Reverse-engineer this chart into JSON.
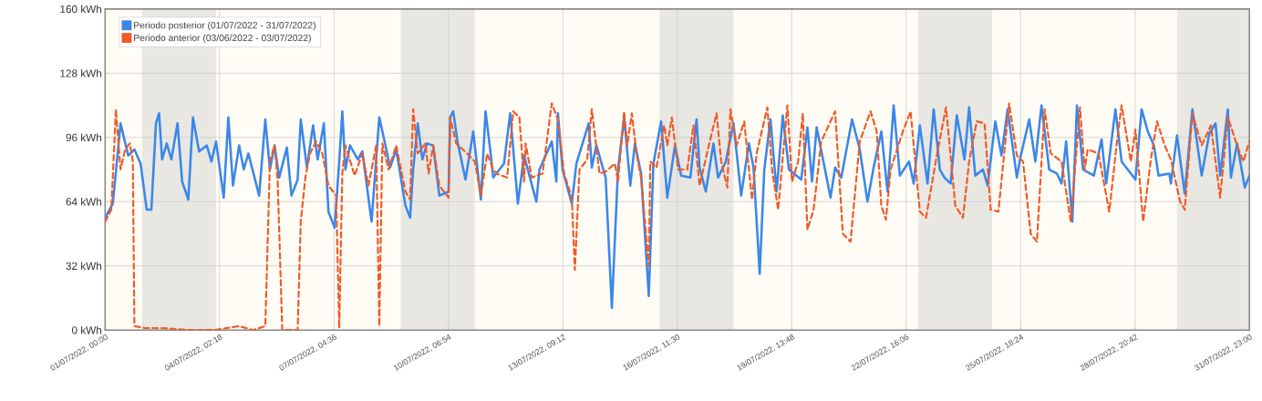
{
  "chart_data": {
    "type": "line",
    "xlim": [
      "2022-07-01T00:00",
      "2022-07-31T23:00"
    ],
    "ylim": [
      0,
      160
    ],
    "xticks": [
      {
        "value": "2022-07-01T00:00",
        "label": "01/07/2022, 00:00"
      },
      {
        "value": "2022-07-04T02:18",
        "label": "04/07/2022, 02:18"
      },
      {
        "value": "2022-07-07T04:36",
        "label": "07/07/2022, 04:36"
      },
      {
        "value": "2022-07-10T06:54",
        "label": "10/07/2022, 06:54"
      },
      {
        "value": "2022-07-13T09:12",
        "label": "13/07/2022, 09:12"
      },
      {
        "value": "2022-07-16T11:30",
        "label": "16/07/2022, 11:30"
      },
      {
        "value": "2022-07-19T13:48",
        "label": "19/07/2022, 13:48"
      },
      {
        "value": "2022-07-22T16:06",
        "label": "22/07/2022, 16:06"
      },
      {
        "value": "2022-07-25T18:24",
        "label": "25/07/2022, 18:24"
      },
      {
        "value": "2022-07-28T20:42",
        "label": "28/07/2022, 20:42"
      },
      {
        "value": "2022-07-31T23:00",
        "label": "31/07/2022, 23:00"
      }
    ],
    "yticks": [
      {
        "value": 0,
        "label": "0 kWh"
      },
      {
        "value": 32,
        "label": "32 kWh"
      },
      {
        "value": 64,
        "label": "64 kWh"
      },
      {
        "value": 96,
        "label": "96 kWh"
      },
      {
        "value": 128,
        "label": "128 kWh"
      },
      {
        "value": 160,
        "label": "160 kWh"
      }
    ],
    "grid": true,
    "legend": "top left",
    "marker": "none",
    "bands": [
      {
        "axis": "x",
        "from": "2022-07-02T00:00",
        "to": "2022-07-04T00:00",
        "color": "#e8e7e2"
      },
      {
        "axis": "x",
        "from": "2022-07-09T00:00",
        "to": "2022-07-11T00:00",
        "color": "#e8e7e2"
      },
      {
        "axis": "x",
        "from": "2022-07-16T00:00",
        "to": "2022-07-18T00:00",
        "color": "#e8e7e2"
      },
      {
        "axis": "x",
        "from": "2022-07-23T00:00",
        "to": "2022-07-25T00:00",
        "color": "#e8e7e2"
      },
      {
        "axis": "x",
        "from": "2022-07-30T00:00",
        "to": "2022-07-31T23:00",
        "color": "#e8e7e2"
      }
    ],
    "series": [
      {
        "name": "Periodo posterior (01/07/2022 - 31/07/2022)",
        "color": "#3b87e8",
        "line_style": "solid",
        "x": [
          "2022-07-01T00:00",
          "2022-07-01T05:00",
          "2022-07-01T08:00",
          "2022-07-01T10:00",
          "2022-07-01T15:00",
          "2022-07-01T19:00",
          "2022-07-01T23:00",
          "2022-07-02T03:00",
          "2022-07-02T06:00",
          "2022-07-02T09:00",
          "2022-07-02T11:00",
          "2022-07-02T13:00",
          "2022-07-02T16:00",
          "2022-07-02T19:00",
          "2022-07-02T23:00",
          "2022-07-03T02:00",
          "2022-07-03T06:00",
          "2022-07-03T09:00",
          "2022-07-03T13:00",
          "2022-07-03T18:00",
          "2022-07-03T21:00",
          "2022-07-04T00:00",
          "2022-07-04T05:00",
          "2022-07-04T08:00",
          "2022-07-04T11:00",
          "2022-07-04T15:00",
          "2022-07-04T18:00",
          "2022-07-04T21:00",
          "2022-07-05T04:00",
          "2022-07-05T08:00",
          "2022-07-05T11:00",
          "2022-07-05T14:00",
          "2022-07-05T17:00",
          "2022-07-05T22:00",
          "2022-07-06T01:00",
          "2022-07-06T05:00",
          "2022-07-06T07:00",
          "2022-07-06T11:00",
          "2022-07-06T15:00",
          "2022-07-06T18:00",
          "2022-07-06T22:00",
          "2022-07-07T01:00",
          "2022-07-07T05:00",
          "2022-07-07T08:00",
          "2022-07-07T10:00",
          "2022-07-07T12:00",
          "2022-07-07T15:00",
          "2022-07-07T20:00",
          "2022-07-07T23:00",
          "2022-07-08T05:00",
          "2022-07-08T10:00",
          "2022-07-08T14:00",
          "2022-07-08T17:00",
          "2022-07-08T21:00",
          "2022-07-09T03:00",
          "2022-07-09T06:00",
          "2022-07-09T08:00",
          "2022-07-09T11:00",
          "2022-07-09T14:00",
          "2022-07-09T17:00",
          "2022-07-09T21:00",
          "2022-07-10T01:00",
          "2022-07-10T07:00",
          "2022-07-10T08:00",
          "2022-07-10T10:00",
          "2022-07-10T13:00",
          "2022-07-10T18:00",
          "2022-07-10T23:00",
          "2022-07-11T04:00",
          "2022-07-11T07:00",
          "2022-07-11T10:00",
          "2022-07-11T12:00",
          "2022-07-11T19:00",
          "2022-07-11T23:00",
          "2022-07-12T04:00",
          "2022-07-12T08:00",
          "2022-07-12T16:00",
          "2022-07-12T18:00",
          "2022-07-13T02:00",
          "2022-07-13T05:00",
          "2022-07-13T06:00",
          "2022-07-13T09:00",
          "2022-07-13T15:00",
          "2022-07-13T18:00",
          "2022-07-14T02:00",
          "2022-07-14T04:00",
          "2022-07-14T07:00",
          "2022-07-14T13:00",
          "2022-07-14T17:00",
          "2022-07-14T21:00",
          "2022-07-15T01:00",
          "2022-07-15T05:00",
          "2022-07-15T08:00",
          "2022-07-15T12:00",
          "2022-07-15T17:00",
          "2022-07-15T20:00",
          "2022-07-16T01:00",
          "2022-07-16T05:00",
          "2022-07-16T10:00",
          "2022-07-16T14:00",
          "2022-07-16T20:00",
          "2022-07-17T00:00",
          "2022-07-17T02:00",
          "2022-07-17T06:00",
          "2022-07-17T11:00",
          "2022-07-17T14:00",
          "2022-07-17T19:00",
          "2022-07-18T00:00",
          "2022-07-18T05:00",
          "2022-07-18T10:00",
          "2022-07-18T13:00",
          "2022-07-18T17:00",
          "2022-07-18T20:00",
          "2022-07-19T00:00",
          "2022-07-19T04:00",
          "2022-07-19T08:00",
          "2022-07-19T12:00",
          "2022-07-19T20:00",
          "2022-07-20T00:00",
          "2022-07-20T03:00",
          "2022-07-20T06:00",
          "2022-07-20T15:00",
          "2022-07-20T18:00",
          "2022-07-20T22:00",
          "2022-07-21T05:00",
          "2022-07-21T10:00",
          "2022-07-21T15:00",
          "2022-07-21T19:00",
          "2022-07-22T00:00",
          "2022-07-22T04:00",
          "2022-07-22T08:00",
          "2022-07-22T12:00",
          "2022-07-22T18:00",
          "2022-07-22T21:00",
          "2022-07-23T01:00",
          "2022-07-23T06:00",
          "2022-07-23T10:00",
          "2022-07-23T14:00",
          "2022-07-23T17:00",
          "2022-07-23T21:00",
          "2022-07-24T01:00",
          "2022-07-24T06:00",
          "2022-07-24T09:00",
          "2022-07-24T13:00",
          "2022-07-24T18:00",
          "2022-07-24T21:00",
          "2022-07-25T02:00",
          "2022-07-25T06:00",
          "2022-07-25T10:00",
          "2022-07-25T16:00",
          "2022-07-25T18:00",
          "2022-07-26T00:00",
          "2022-07-26T04:00",
          "2022-07-26T08:00",
          "2022-07-26T13:00",
          "2022-07-26T18:00",
          "2022-07-26T21:00",
          "2022-07-27T00:00",
          "2022-07-27T04:00",
          "2022-07-27T07:00",
          "2022-07-27T11:00",
          "2022-07-27T18:00",
          "2022-07-27T23:00",
          "2022-07-28T02:00",
          "2022-07-28T08:00",
          "2022-07-28T12:00",
          "2022-07-28T16:00",
          "2022-07-28T21:00",
          "2022-07-29T01:00",
          "2022-07-29T05:00",
          "2022-07-29T09:00",
          "2022-07-29T12:00",
          "2022-07-29T19:00",
          "2022-07-29T20:00",
          "2022-07-30T00:00",
          "2022-07-30T05:00",
          "2022-07-30T10:00",
          "2022-07-30T16:00",
          "2022-07-30T21:00",
          "2022-07-31T01:00",
          "2022-07-31T04:00",
          "2022-07-31T09:00",
          "2022-07-31T11:00",
          "2022-07-31T15:00",
          "2022-07-31T20:00",
          "2022-07-31T23:00"
        ],
        "values": [
          56,
          63,
          87,
          103,
          87,
          90,
          83,
          60,
          60,
          103,
          108,
          85,
          93,
          85,
          103,
          74,
          65,
          106,
          89,
          92,
          84,
          94,
          66,
          106,
          72,
          92,
          80,
          88,
          67,
          105,
          80,
          92,
          76,
          91,
          67,
          75,
          105,
          81,
          102,
          85,
          103,
          59,
          51,
          84,
          109,
          80,
          92,
          85,
          89,
          54,
          106,
          92,
          81,
          90,
          62,
          56,
          80,
          103,
          85,
          93,
          92,
          67,
          69,
          106,
          109,
          93,
          75,
          99,
          65,
          109,
          90,
          76,
          83,
          108,
          63,
          87,
          64,
          80,
          94,
          74,
          108,
          80,
          63,
          83,
          103,
          81,
          92,
          76,
          11,
          80,
          106,
          72,
          93,
          78,
          17,
          83,
          104,
          66,
          92,
          77,
          76,
          105,
          81,
          69,
          93,
          76,
          84,
          103,
          67,
          93,
          81,
          28,
          80,
          105,
          69,
          107,
          80,
          75,
          101,
          74,
          101,
          66,
          81,
          76,
          105,
          90,
          64,
          81,
          99,
          69,
          112,
          77,
          84,
          73,
          102,
          73,
          110,
          80,
          76,
          73,
          107,
          85,
          111,
          77,
          80,
          72,
          104,
          87,
          110,
          76,
          85,
          105,
          84,
          112,
          80,
          78,
          73,
          94,
          54,
          112,
          80,
          77,
          95,
          73,
          110,
          84,
          80,
          75,
          110,
          99,
          92,
          77,
          78,
          73,
          97,
          68,
          110,
          77,
          98,
          103,
          77,
          110,
          76,
          93,
          71,
          77
        ]
      },
      {
        "name": "Periodo anterior (03/06/2022 - 03/07/2022)",
        "color": "#f05a28",
        "line_style": "dashed",
        "x": [
          "2022-07-01T00:00",
          "2022-07-01T04:00",
          "2022-07-01T07:00",
          "2022-07-01T10:00",
          "2022-07-01T13:00",
          "2022-07-01T16:00",
          "2022-07-01T18:00",
          "2022-07-01T19:00",
          "2022-07-02T02:00",
          "2022-07-02T13:00",
          "2022-07-03T07:00",
          "2022-07-03T23:00",
          "2022-07-04T15:00",
          "2022-07-05T00:00",
          "2022-07-05T08:00",
          "2022-07-05T11:00",
          "2022-07-05T14:00",
          "2022-07-05T16:00",
          "2022-07-05T19:00",
          "2022-07-06T05:00",
          "2022-07-06T07:00",
          "2022-07-06T10:00",
          "2022-07-06T13:00",
          "2022-07-06T17:00",
          "2022-07-06T21:00",
          "2022-07-07T01:00",
          "2022-07-07T06:00",
          "2022-07-07T08:00",
          "2022-07-07T10:00",
          "2022-07-07T12:00",
          "2022-07-07T18:00",
          "2022-07-07T23:00",
          "2022-07-08T03:00",
          "2022-07-08T08:00",
          "2022-07-08T10:00",
          "2022-07-08T12:00",
          "2022-07-08T16:00",
          "2022-07-08T21:00",
          "2022-07-09T03:00",
          "2022-07-09T06:00",
          "2022-07-09T08:00",
          "2022-07-09T11:00",
          "2022-07-09T16:00",
          "2022-07-09T18:00",
          "2022-07-09T21:00",
          "2022-07-10T01:00",
          "2022-07-10T07:00",
          "2022-07-10T08:00",
          "2022-07-10T12:00",
          "2022-07-10T19:00",
          "2022-07-11T00:00",
          "2022-07-11T04:00",
          "2022-07-11T08:00",
          "2022-07-11T12:00",
          "2022-07-11T14:00",
          "2022-07-11T21:00",
          "2022-07-12T01:00",
          "2022-07-12T05:00",
          "2022-07-12T08:00",
          "2022-07-12T09:00",
          "2022-07-12T13:00",
          "2022-07-12T20:00",
          "2022-07-13T02:00",
          "2022-07-13T06:00",
          "2022-07-13T10:00",
          "2022-07-13T15:00",
          "2022-07-13T17:00",
          "2022-07-13T20:00",
          "2022-07-14T01:00",
          "2022-07-14T04:00",
          "2022-07-14T09:00",
          "2022-07-14T13:00",
          "2022-07-14T19:00",
          "2022-07-14T21:00",
          "2022-07-15T01:00",
          "2022-07-15T03:00",
          "2022-07-15T06:00",
          "2022-07-15T09:00",
          "2022-07-15T12:00",
          "2022-07-15T17:00",
          "2022-07-15T18:00",
          "2022-07-15T22:00",
          "2022-07-16T03:00",
          "2022-07-16T05:00",
          "2022-07-16T08:00",
          "2022-07-16T12:00",
          "2022-07-16T18:00",
          "2022-07-16T22:00",
          "2022-07-17T02:00",
          "2022-07-17T08:00",
          "2022-07-17T13:00",
          "2022-07-17T16:00",
          "2022-07-17T20:00",
          "2022-07-17T22:00",
          "2022-07-18T02:00",
          "2022-07-18T07:00",
          "2022-07-18T12:00",
          "2022-07-18T15:00",
          "2022-07-18T22:00",
          "2022-07-19T01:00",
          "2022-07-19T05:00",
          "2022-07-19T11:00",
          "2022-07-19T14:00",
          "2022-07-19T18:00",
          "2022-07-19T21:00",
          "2022-07-20T00:00",
          "2022-07-20T04:00",
          "2022-07-20T09:00",
          "2022-07-20T18:00",
          "2022-07-20T23:00",
          "2022-07-21T04:00",
          "2022-07-21T10:00",
          "2022-07-21T17:00",
          "2022-07-21T21:00",
          "2022-07-22T00:00",
          "2022-07-22T03:00",
          "2022-07-22T06:00",
          "2022-07-22T14:00",
          "2022-07-22T19:00",
          "2022-07-23T01:00",
          "2022-07-23T05:00",
          "2022-07-23T12:00",
          "2022-07-23T18:00",
          "2022-07-24T00:00",
          "2022-07-24T05:00",
          "2022-07-24T09:00",
          "2022-07-24T14:00",
          "2022-07-24T19:00",
          "2022-07-24T23:00",
          "2022-07-25T04:00",
          "2022-07-25T08:00",
          "2022-07-25T11:00",
          "2022-07-25T16:00",
          "2022-07-25T20:00",
          "2022-07-26T01:00",
          "2022-07-26T05:00",
          "2022-07-26T10:00",
          "2022-07-26T14:00",
          "2022-07-26T21:00",
          "2022-07-27T03:00",
          "2022-07-27T09:00",
          "2022-07-27T12:00",
          "2022-07-27T14:00",
          "2022-07-27T21:00",
          "2022-07-28T04:00",
          "2022-07-28T09:00",
          "2022-07-28T12:00",
          "2022-07-28T18:00",
          "2022-07-28T21:00",
          "2022-07-29T02:00",
          "2022-07-29T07:00",
          "2022-07-29T11:00",
          "2022-07-29T16:00",
          "2022-07-29T20:00",
          "2022-07-30T02:00",
          "2022-07-30T05:00",
          "2022-07-30T10:00",
          "2022-07-30T16:00",
          "2022-07-30T22:00",
          "2022-07-31T04:00",
          "2022-07-31T09:00",
          "2022-07-31T15:00",
          "2022-07-31T19:00",
          "2022-07-31T23:00"
        ],
        "values": [
          54,
          60,
          110,
          80,
          90,
          93,
          84,
          2,
          1,
          1,
          0,
          0,
          2,
          0,
          2,
          84,
          92,
          75,
          0,
          0,
          54,
          76,
          88,
          94,
          88,
          72,
          67,
          1,
          78,
          92,
          77,
          88,
          72,
          92,
          2,
          93,
          80,
          92,
          69,
          65,
          110,
          88,
          93,
          78,
          92,
          72,
          66,
          106,
          93,
          88,
          84,
          67,
          88,
          80,
          78,
          76,
          109,
          106,
          74,
          93,
          76,
          78,
          113,
          105,
          78,
          66,
          30,
          80,
          85,
          110,
          78,
          79,
          83,
          74,
          109,
          92,
          108,
          88,
          76,
          32,
          84,
          81,
          102,
          92,
          106,
          80,
          80,
          102,
          72,
          92,
          108,
          84,
          71,
          110,
          92,
          104,
          65,
          88,
          111,
          80,
          60,
          112,
          74,
          84,
          108,
          50,
          60,
          94,
          109,
          48,
          44,
          94,
          109,
          99,
          62,
          55,
          80,
          99,
          109,
          59,
          56,
          87,
          111,
          62,
          56,
          84,
          104,
          103,
          60,
          59,
          90,
          113,
          87,
          84,
          48,
          44,
          110,
          88,
          84,
          54,
          111,
          80,
          90,
          88,
          59,
          94,
          112,
          84,
          100,
          54,
          85,
          104,
          92,
          85,
          64,
          60,
          108,
          92,
          102,
          66,
          106,
          92,
          84,
          94
        ]
      }
    ]
  }
}
